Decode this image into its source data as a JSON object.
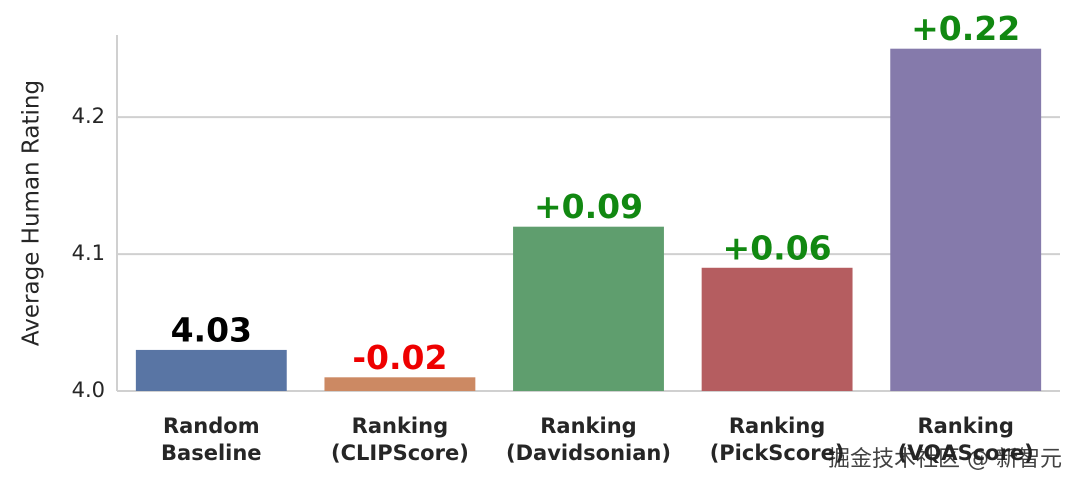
{
  "chart_data": {
    "type": "bar",
    "y_label": "Average Human Rating",
    "categories": [
      [
        "Random",
        "Baseline"
      ],
      [
        "Ranking",
        "(CLIPScore)"
      ],
      [
        "Ranking",
        "(Davidsonian)"
      ],
      [
        "Ranking",
        "(PickScore)"
      ],
      [
        "Ranking",
        "(VQAScore)"
      ]
    ],
    "values": [
      4.03,
      4.01,
      4.12,
      4.09,
      4.25
    ],
    "colors": [
      "#5975a4",
      "#cc8963",
      "#5f9e6e",
      "#b55d60",
      "#857aab"
    ],
    "annotations": [
      "4.03",
      "-0.02",
      "+0.09",
      "+0.06",
      "+0.22"
    ],
    "annotation_colors": [
      "#000000",
      "#ee0000",
      "#118811",
      "#118811",
      "#118811"
    ],
    "ylim": [
      4.0,
      4.26
    ],
    "yticks": [
      {
        "value": 4,
        "label": "4.0"
      },
      4.1,
      4.2
    ],
    "grid": true
  },
  "watermark": "掘金技术社区 @ 新智元"
}
